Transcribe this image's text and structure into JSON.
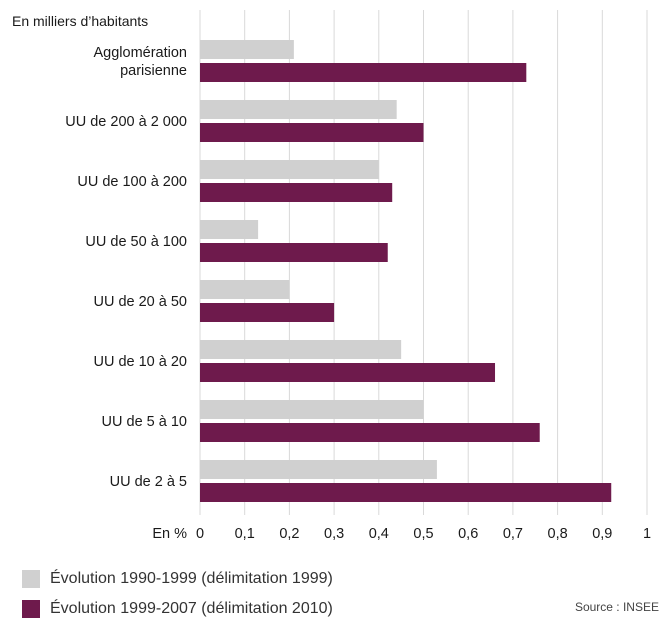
{
  "chart_data": {
    "type": "bar",
    "orientation": "horizontal",
    "unit_label": "En milliers d’habitants",
    "x_unit_label": "En %",
    "categories": [
      [
        "Agglomération",
        "parisienne"
      ],
      [
        "UU de 200 à 2 000"
      ],
      [
        "UU de 100 à 200"
      ],
      [
        "UU de 50 à 100"
      ],
      [
        "UU de 20 à 50"
      ],
      [
        "UU de 10 à 20"
      ],
      [
        "UU de 5 à 10"
      ],
      [
        "UU de 2 à 5"
      ]
    ],
    "series": [
      {
        "name": "Évolution 1990-1999 (délimitation 1999)",
        "color": "#d0d0d0",
        "values": [
          0.21,
          0.44,
          0.4,
          0.13,
          0.2,
          0.45,
          0.5,
          0.53
        ]
      },
      {
        "name": "Évolution 1999-2007 (délimitation 2010)",
        "color": "#6e1a4c",
        "values": [
          0.73,
          0.5,
          0.43,
          0.42,
          0.3,
          0.66,
          0.76,
          0.92
        ]
      }
    ],
    "xlim": [
      0,
      1
    ],
    "xticks": [
      "0",
      "0,1",
      "0,2",
      "0,3",
      "0,4",
      "0,5",
      "0,6",
      "0,7",
      "0,8",
      "0,9",
      "1"
    ],
    "grid": "vertical",
    "legend_position": "bottom-left",
    "source": "Source : INSEE"
  }
}
